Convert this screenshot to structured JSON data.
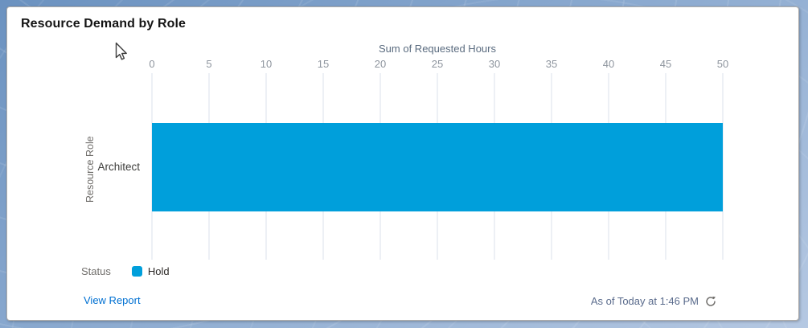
{
  "card": {
    "title": "Resource Demand by Role",
    "legend": {
      "title": "Status",
      "items": [
        {
          "label": "Hold",
          "color": "#009FDB"
        }
      ]
    },
    "footer": {
      "view_report_label": "View Report",
      "as_of_text": "As of Today at 1:46 PM"
    }
  },
  "chart_data": {
    "type": "bar",
    "orientation": "horizontal",
    "title": "Resource Demand by Role",
    "xlabel": "Sum of Requested Hours",
    "ylabel": "Resource Role",
    "categories": [
      "Architect"
    ],
    "series": [
      {
        "name": "Hold",
        "color": "#009FDB",
        "values": [
          50
        ]
      }
    ],
    "xlim": [
      0,
      50
    ],
    "xticks": [
      0,
      5,
      10,
      15,
      20,
      25,
      30,
      35,
      40,
      45,
      50
    ],
    "grid": true,
    "legend_title": "Status",
    "legend_position": "bottom"
  },
  "icons": {
    "refresh_icon": "circular-arrow-clockwise",
    "cursor_icon": "arrow-pointer"
  },
  "colors": {
    "bar": "#009FDB",
    "link": "#0070D2",
    "gridline": "#DBE1EB",
    "tick_text": "#8E959E",
    "axis_title_text": "#5A6B7F"
  }
}
